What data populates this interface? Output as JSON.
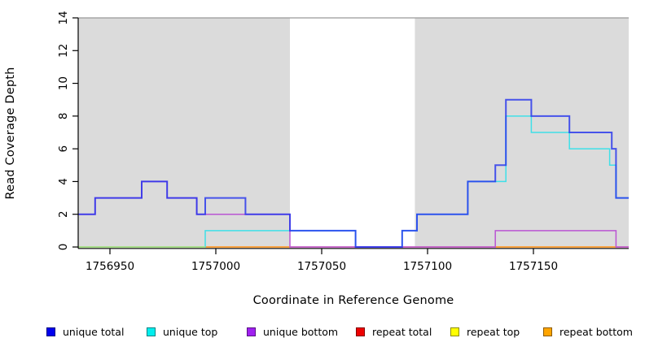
{
  "figure_title": "",
  "x_axis": {
    "title": "Coordinate in Reference Genome",
    "tick_labels": [
      "1756950",
      "1757000",
      "1757050",
      "1757100",
      "1757150"
    ],
    "tick_values": [
      1756950,
      1757000,
      1757050,
      1757100,
      1757150
    ]
  },
  "y_axis": {
    "title": "Read Coverage Depth",
    "tick_labels": [
      "0",
      "2",
      "4",
      "6",
      "8",
      "10",
      "12",
      "14"
    ],
    "tick_values": [
      0,
      2,
      4,
      6,
      8,
      10,
      12,
      14
    ]
  },
  "chart_data": {
    "type": "line",
    "subtype": "step",
    "xlabel": "Coordinate in Reference Genome",
    "ylabel": "Read Coverage Depth",
    "xlim": [
      1756935,
      1757195
    ],
    "ylim": [
      0,
      14
    ],
    "x_ticks": [
      1756950,
      1757000,
      1757050,
      1757100,
      1757150
    ],
    "y_ticks": [
      0,
      2,
      4,
      6,
      8,
      10,
      12,
      14
    ],
    "grid": false,
    "legend_position": "bottom",
    "frame": {
      "top_line_color": "#999999",
      "shade_color": "#DBDBDB",
      "axis_color": "#000000"
    },
    "shaded_regions": [
      {
        "x0": 1756935,
        "x1": 1757035
      },
      {
        "x0": 1757094,
        "x1": 1757195
      }
    ],
    "series": [
      {
        "name": "repeat total",
        "color": "#E25563",
        "width": 1.4,
        "opacity": 1,
        "steps": [
          [
            1756935,
            0
          ]
        ]
      },
      {
        "name": "repeat bottom",
        "color": "#FFA41E",
        "width": 1.6,
        "opacity": 1,
        "steps": [
          [
            1756935,
            null
          ],
          [
            1756995,
            0
          ],
          [
            1757035,
            null
          ],
          [
            1757132,
            0
          ],
          [
            1757189,
            null
          ]
        ]
      },
      {
        "name": "unique top",
        "color": "#3FE0E8",
        "width": 1.5,
        "opacity": 1,
        "steps": [
          [
            1756935,
            0
          ],
          [
            1756995,
            1
          ],
          [
            1757066,
            0
          ],
          [
            1757088,
            1
          ],
          [
            1757095,
            2
          ],
          [
            1757119,
            4
          ],
          [
            1757137,
            8
          ],
          [
            1757149,
            7
          ],
          [
            1757167,
            6
          ],
          [
            1757186,
            5
          ],
          [
            1757189,
            3
          ]
        ]
      },
      {
        "name": "repeat top",
        "color": "#F5F520",
        "width": 1.4,
        "opacity": 0.55,
        "steps": [
          [
            1756935,
            0
          ],
          [
            1756995,
            null
          ]
        ]
      },
      {
        "name": "unique bottom",
        "color": "#BA55D3",
        "width": 1.5,
        "opacity": 1,
        "steps": [
          [
            1756935,
            2
          ],
          [
            1756943,
            3
          ],
          [
            1756965,
            4
          ],
          [
            1756977,
            3
          ],
          [
            1756991,
            2
          ],
          [
            1757035,
            0
          ],
          [
            1757132,
            1
          ],
          [
            1757189,
            0
          ]
        ]
      },
      {
        "name": "unique total",
        "color": "#2030EE",
        "width": 2.0,
        "opacity": 0.8,
        "steps": [
          [
            1756935,
            2
          ],
          [
            1756943,
            3
          ],
          [
            1756965,
            4
          ],
          [
            1756977,
            3
          ],
          [
            1756991,
            2
          ],
          [
            1756995,
            3
          ],
          [
            1757014,
            2
          ],
          [
            1757035,
            1
          ],
          [
            1757066,
            0
          ],
          [
            1757088,
            1
          ],
          [
            1757095,
            2
          ],
          [
            1757119,
            4
          ],
          [
            1757132,
            5
          ],
          [
            1757137,
            9
          ],
          [
            1757149,
            8
          ],
          [
            1757167,
            7
          ],
          [
            1757187,
            6
          ],
          [
            1757189,
            3
          ]
        ]
      }
    ]
  },
  "legend": {
    "items": [
      {
        "label": "unique total",
        "color": "#0000EE"
      },
      {
        "label": "unique top",
        "color": "#00EEEE"
      },
      {
        "label": "unique bottom",
        "color": "#A020F0"
      },
      {
        "label": "repeat total",
        "color": "#EE0000"
      },
      {
        "label": "repeat top",
        "color": "#FFFF00"
      },
      {
        "label": "repeat bottom",
        "color": "#FFA500"
      }
    ]
  }
}
